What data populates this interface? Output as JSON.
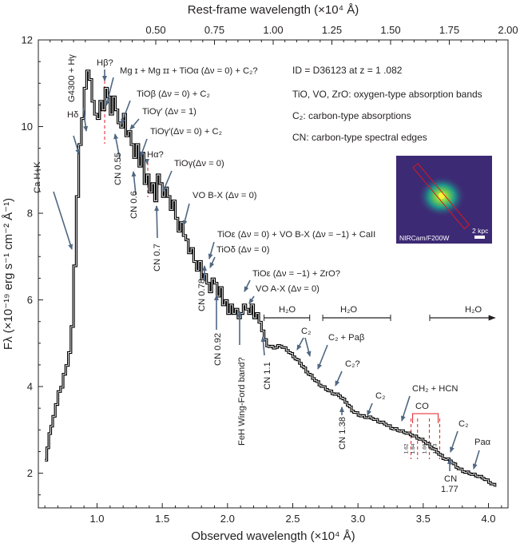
{
  "chart_data": {
    "type": "line",
    "xlabel": "Observed wavelength (×10⁴ Å)",
    "x2label": "Rest-frame wavelength (×10⁴ Å)",
    "ylabel": "Fλ (×10⁻¹⁹ erg s⁻¹ cm⁻² Å⁻¹)",
    "xlim": [
      0.55,
      4.15
    ],
    "ylim": [
      1.2,
      12.0
    ],
    "x2lim": [
      0.0,
      2.0
    ],
    "x_ticks": [
      1.0,
      1.5,
      2.0,
      2.5,
      3.0,
      3.5,
      4.0
    ],
    "x_tick_labels": [
      "1.0",
      "1.5",
      "2.0",
      "2.5",
      "3.0",
      "3.5",
      "4.0"
    ],
    "x2_ticks": [
      0.5,
      0.75,
      1.0,
      1.25,
      1.5,
      1.75,
      2.0
    ],
    "x2_tick_labels": [
      "0.50",
      "0.75",
      "1.00",
      "1.25",
      "1.50",
      "1.75",
      "2.00"
    ],
    "y_ticks": [
      2,
      4,
      6,
      8,
      10,
      12
    ],
    "y_tick_labels": [
      "2",
      "4",
      "6",
      "8",
      "10",
      "12"
    ],
    "series": [
      {
        "color": "#000000",
        "x": [
          0.6,
          0.63,
          0.66,
          0.68,
          0.7,
          0.72,
          0.74,
          0.76,
          0.78,
          0.8,
          0.82,
          0.84,
          0.86,
          0.88,
          0.9,
          0.92,
          0.94,
          0.96,
          0.98,
          1.0,
          1.02,
          1.04,
          1.06,
          1.08,
          1.1,
          1.12,
          1.14,
          1.16,
          1.18,
          1.2,
          1.22,
          1.24,
          1.26,
          1.28,
          1.3,
          1.32,
          1.34,
          1.36,
          1.38,
          1.4,
          1.42,
          1.44,
          1.46,
          1.48,
          1.5,
          1.52,
          1.54,
          1.56,
          1.58,
          1.6,
          1.62,
          1.64,
          1.66,
          1.68,
          1.7,
          1.72,
          1.74,
          1.76,
          1.78,
          1.8,
          1.82,
          1.84,
          1.86,
          1.88,
          1.9,
          1.92,
          1.94,
          1.96,
          1.98,
          2.0,
          2.02,
          2.04,
          2.06,
          2.08,
          2.1,
          2.12,
          2.14,
          2.16,
          2.18,
          2.2,
          2.22,
          2.24,
          2.26,
          2.28,
          2.3,
          2.35,
          2.4,
          2.45,
          2.5,
          2.55,
          2.6,
          2.65,
          2.7,
          2.75,
          2.8,
          2.85,
          2.9,
          2.95,
          3.0,
          3.05,
          3.1,
          3.15,
          3.2,
          3.25,
          3.3,
          3.35,
          3.4,
          3.45,
          3.5,
          3.55,
          3.6,
          3.65,
          3.7,
          3.75,
          3.8,
          3.85,
          3.9,
          3.95,
          4.0,
          4.05
        ],
        "y": [
          2.3,
          2.9,
          3.3,
          3.6,
          3.9,
          4.0,
          4.3,
          4.5,
          4.8,
          5.4,
          6.8,
          8.4,
          9.6,
          10.2,
          10.9,
          11.3,
          11.1,
          10.6,
          10.3,
          10.2,
          10.6,
          10.4,
          10.9,
          10.7,
          10.3,
          10.7,
          10.4,
          10.1,
          10.0,
          10.3,
          9.8,
          9.9,
          9.6,
          9.3,
          9.6,
          9.1,
          9.4,
          8.7,
          8.9,
          8.5,
          8.7,
          8.3,
          8.9,
          8.7,
          8.4,
          8.6,
          8.4,
          8.1,
          8.3,
          7.9,
          7.6,
          7.8,
          7.5,
          7.4,
          7.1,
          7.2,
          6.9,
          6.7,
          6.9,
          6.5,
          6.6,
          6.4,
          6.2,
          6.5,
          6.4,
          6.1,
          6.3,
          5.9,
          6.0,
          5.7,
          5.9,
          5.7,
          5.8,
          5.6,
          5.7,
          5.9,
          5.8,
          5.7,
          5.9,
          5.6,
          5.7,
          5.5,
          5.3,
          5.1,
          4.95,
          4.9,
          4.95,
          4.85,
          4.7,
          4.55,
          4.35,
          4.2,
          4.05,
          3.95,
          3.85,
          3.8,
          3.65,
          3.45,
          3.35,
          3.3,
          3.28,
          3.2,
          3.15,
          3.05,
          3.0,
          2.95,
          2.9,
          2.82,
          2.75,
          2.62,
          2.5,
          2.35,
          2.3,
          2.15,
          2.05,
          2.0,
          1.95,
          1.9,
          1.8,
          1.7
        ]
      }
    ],
    "annotations": [
      {
        "id": "ca-hk",
        "text": "Ca H+K",
        "x": 0.81
      },
      {
        "id": "hdelta",
        "text": "Hδ",
        "x": 0.87
      },
      {
        "id": "g4300",
        "text": "G4300 + Hγ",
        "x": 0.91
      },
      {
        "id": "hbeta",
        "text": "Hβ?",
        "x": 1.07
      },
      {
        "id": "mg",
        "text": "Mg ɪ + Mg ɪɪ + TiOα (Δν = 0) + C₂?",
        "x": 1.12
      },
      {
        "id": "tiob",
        "text": "TiOβ (Δν = 0) + C₂",
        "x": 1.19
      },
      {
        "id": "tiogp1",
        "text": "TiOγ′ (Δν = 1)",
        "x": 1.26
      },
      {
        "id": "tiogp0",
        "text": "TiOγ′(Δν = 0) + C₂",
        "x": 1.32
      },
      {
        "id": "cn055",
        "text": "CN 0.55",
        "x": 1.14
      },
      {
        "id": "halpha",
        "text": "Hα?",
        "x": 1.4
      },
      {
        "id": "cn06",
        "text": "CN 0.6",
        "x": 1.36
      },
      {
        "id": "tiog",
        "text": "TiOγ(Δν = 0)",
        "x": 1.49
      },
      {
        "id": "cn07",
        "text": "CN 0.7",
        "x": 1.51
      },
      {
        "id": "vobx",
        "text": "VO B-X (Δν = 0)",
        "x": 1.64
      },
      {
        "id": "tioe",
        "text": "TiOε (Δν = 0) + VO B-X (Δν = −1) + CaII",
        "x": 1.82
      },
      {
        "id": "tiod",
        "text": "TiOδ  (Δν = 0)",
        "x": 1.86
      },
      {
        "id": "cn078",
        "text": "CN 0.78",
        "x": 1.74
      },
      {
        "id": "tioe2",
        "text": "TiOε (Δν = −1) + ZrO?",
        "x": 1.95
      },
      {
        "id": "voax",
        "text": "VO A-X (Δν = 0)",
        "x": 2.13
      },
      {
        "id": "cn092",
        "text": "CN 0.92",
        "x": 1.92
      },
      {
        "id": "feh",
        "text": "FeH Wing-Ford band?",
        "x": 2.06
      },
      {
        "id": "cn11",
        "text": "CN 1.1",
        "x": 2.27
      },
      {
        "id": "h2o-1",
        "text": "H₂O",
        "x": 2.46
      },
      {
        "id": "h2o-2",
        "text": "H₂O",
        "x": 2.97
      },
      {
        "id": "h2o-3",
        "text": "H₂O",
        "x": 3.9
      },
      {
        "id": "c2a",
        "text": "C₂",
        "x": 2.52
      },
      {
        "id": "c2pab",
        "text": "C₂ + Paβ",
        "x": 2.69
      },
      {
        "id": "c2q",
        "text": "C₂?",
        "x": 2.88
      },
      {
        "id": "cn138",
        "text": "CN 1.38",
        "x": 2.83
      },
      {
        "id": "c2b",
        "text": "C₂",
        "x": 3.06
      },
      {
        "id": "ch2hcn",
        "text": "CH₂ + HCN",
        "x": 3.34
      },
      {
        "id": "co",
        "text": "CO",
        "x": 3.46
      },
      {
        "id": "c2c",
        "text": "C₂",
        "x": 3.73
      },
      {
        "id": "cn177",
        "text": "CN 1.77",
        "x": 3.7
      },
      {
        "id": "paa",
        "text": "Paα",
        "x": 3.92
      }
    ],
    "co_marks": [
      {
        "text": "1.62",
        "x": 3.37
      },
      {
        "text": "1.64",
        "x": 3.42
      },
      {
        "text": "1.69",
        "x": 3.51
      },
      {
        "text": "1.73",
        "x": 3.59
      }
    ],
    "h2o_bands": [
      {
        "x0": 2.28,
        "x1": 2.63,
        "arrow": false
      },
      {
        "x0": 2.73,
        "x1": 3.25,
        "arrow": false
      },
      {
        "x0": 3.55,
        "x1": 4.05,
        "arrow": true
      }
    ],
    "info_lines": [
      "ID = D36123 at z = 1 .082",
      "TiO, VO, ZrO: oxygen-type absorption bands",
      "C₂: carbon-type absorptions",
      "CN: carbon-type spectral edges"
    ],
    "inset": {
      "label": "NIRCam/F200W",
      "scale": "2 kpc"
    },
    "colors": {
      "line": "#000000",
      "arrow": "#4f6781",
      "marker": "#e31e24",
      "inset_bg": "#3d2a75",
      "text": "#231f20"
    }
  }
}
